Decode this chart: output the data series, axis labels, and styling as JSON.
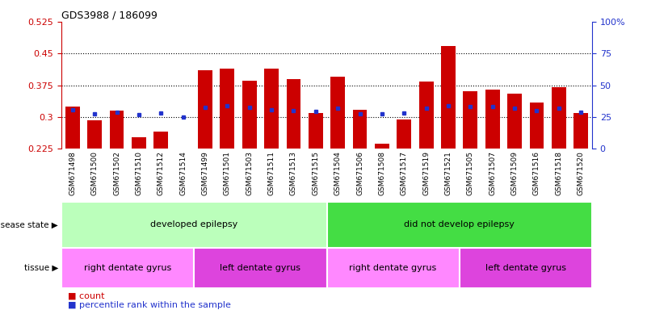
{
  "title": "GDS3988 / 186099",
  "samples": [
    "GSM671498",
    "GSM671500",
    "GSM671502",
    "GSM671510",
    "GSM671512",
    "GSM671514",
    "GSM671499",
    "GSM671501",
    "GSM671503",
    "GSM671511",
    "GSM671513",
    "GSM671515",
    "GSM671504",
    "GSM671506",
    "GSM671508",
    "GSM671517",
    "GSM671519",
    "GSM671521",
    "GSM671505",
    "GSM671507",
    "GSM671509",
    "GSM671516",
    "GSM671518",
    "GSM671520"
  ],
  "red_values": [
    0.325,
    0.293,
    0.315,
    0.252,
    0.265,
    0.222,
    0.41,
    0.415,
    0.385,
    0.415,
    0.39,
    0.31,
    0.395,
    0.318,
    0.237,
    0.295,
    0.383,
    0.467,
    0.36,
    0.365,
    0.355,
    0.335,
    0.37,
    0.31
  ],
  "blue_values": [
    0.318,
    0.308,
    0.312,
    0.305,
    0.31,
    0.3,
    0.322,
    0.326,
    0.322,
    0.318,
    0.316,
    0.314,
    0.32,
    0.308,
    0.308,
    0.31,
    0.32,
    0.326,
    0.324,
    0.325,
    0.32,
    0.316,
    0.32,
    0.312
  ],
  "ylim_left": [
    0.225,
    0.525
  ],
  "ylim_right": [
    0,
    100
  ],
  "yticks_left": [
    0.225,
    0.3,
    0.375,
    0.45,
    0.525
  ],
  "ytick_labels_left": [
    "0.225",
    "0.3",
    "0.375",
    "0.45",
    "0.525"
  ],
  "yticks_right": [
    0,
    25,
    50,
    75,
    100
  ],
  "ytick_labels_right": [
    "0",
    "25",
    "50",
    "75",
    "100%"
  ],
  "hgrid_lines": [
    0.3,
    0.375,
    0.45
  ],
  "bar_width": 0.65,
  "red_color": "#CC0000",
  "blue_color": "#2233CC",
  "bar_baseline": 0.225,
  "disease_state_groups": [
    {
      "label": "developed epilepsy",
      "start": 0,
      "end": 12,
      "color": "#BBFFBB"
    },
    {
      "label": "did not develop epilepsy",
      "start": 12,
      "end": 24,
      "color": "#44DD44"
    }
  ],
  "tissue_groups": [
    {
      "label": "right dentate gyrus",
      "start": 0,
      "end": 6,
      "color": "#FF88FF"
    },
    {
      "label": "left dentate gyrus",
      "start": 6,
      "end": 12,
      "color": "#DD44DD"
    },
    {
      "label": "right dentate gyrus",
      "start": 12,
      "end": 18,
      "color": "#FF88FF"
    },
    {
      "label": "left dentate gyrus",
      "start": 18,
      "end": 24,
      "color": "#DD44DD"
    }
  ],
  "disease_label": "disease state",
  "tissue_label": "tissue",
  "legend_count_label": "count",
  "legend_pct_label": "percentile rank within the sample",
  "xtick_bg_color": "#C8C8C8"
}
